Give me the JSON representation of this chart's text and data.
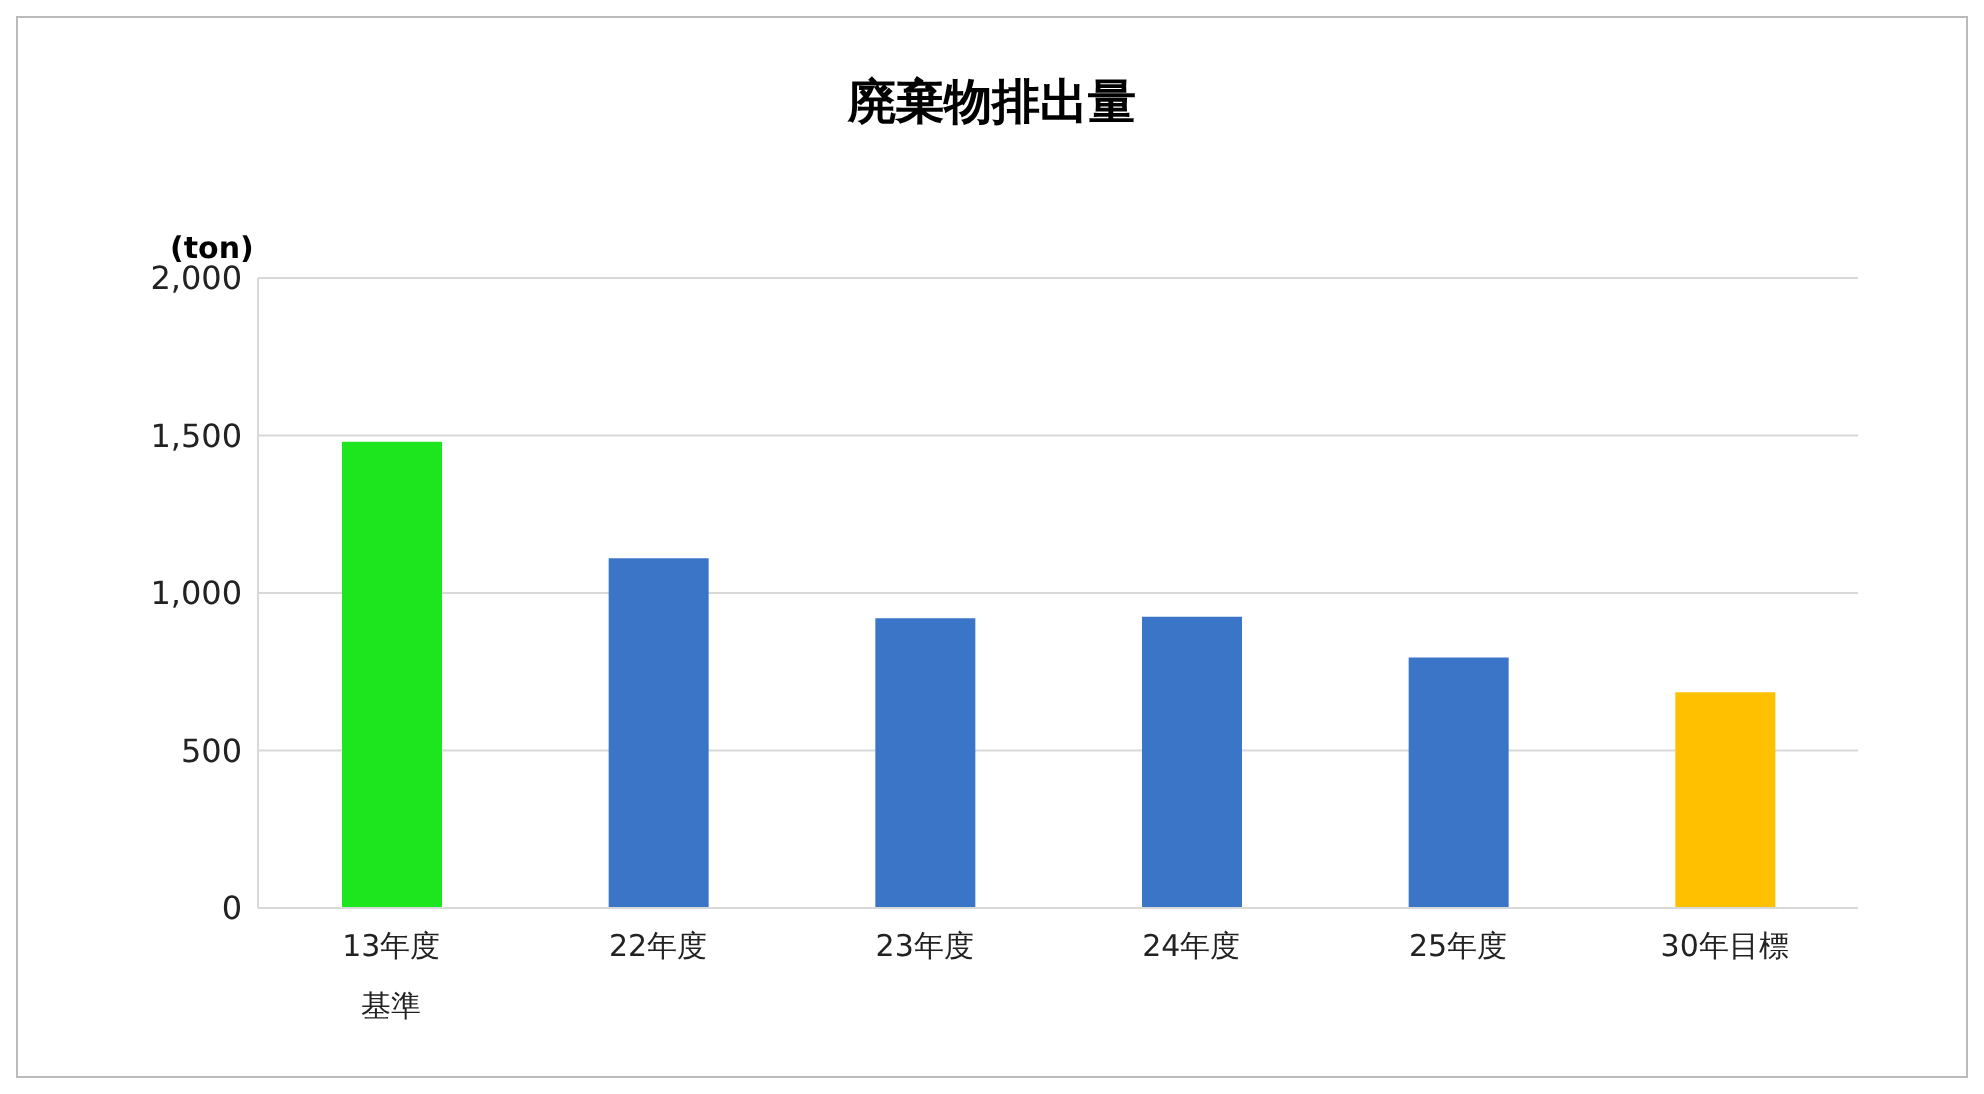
{
  "chart_data": {
    "type": "bar",
    "title": "廃棄物排出量",
    "ylabel": "(ton)",
    "categories": [
      "13年度基準",
      "22年度",
      "23年度",
      "24年度",
      "25年度",
      "30年目標"
    ],
    "values": [
      1480,
      1110,
      920,
      925,
      795,
      685
    ],
    "colors": [
      "#1ee61e",
      "#3a75c8",
      "#3a75c8",
      "#3a75c8",
      "#3a75c8",
      "#ffc000"
    ],
    "ylim": [
      0,
      2000
    ],
    "yticks": [
      0,
      {
        "value": 500,
        "label": "500"
      },
      {
        "value": 1000,
        "label": "1,000"
      },
      {
        "value": 1500,
        "label": "1,500"
      },
      {
        "value": 2000,
        "label": "2,000"
      }
    ],
    "grid": "y",
    "legend": false
  }
}
